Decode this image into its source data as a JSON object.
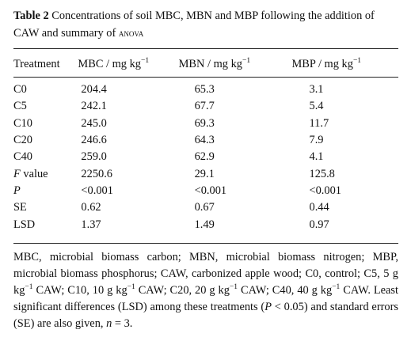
{
  "caption": {
    "label": "Table 2",
    "text_part1": "Concentrations of soil MBC, MBN and MBP following the addition of CAW and summary of",
    "text_sc": "anova"
  },
  "table": {
    "headers": [
      {
        "text": "Treatment",
        "sup": ""
      },
      {
        "text": "MBC / mg kg",
        "sup": "−1"
      },
      {
        "text": "MBN / mg kg",
        "sup": "−1"
      },
      {
        "text": "MBP / mg kg",
        "sup": "−1"
      }
    ],
    "rows": [
      {
        "label": "C0",
        "italic": false,
        "suffix": "",
        "mbc": "204.4",
        "mbn": "65.3",
        "mbp": "3.1"
      },
      {
        "label": "C5",
        "italic": false,
        "suffix": "",
        "mbc": "242.1",
        "mbn": "67.7",
        "mbp": "5.4"
      },
      {
        "label": "C10",
        "italic": false,
        "suffix": "",
        "mbc": "245.0",
        "mbn": "69.3",
        "mbp": "11.7"
      },
      {
        "label": "C20",
        "italic": false,
        "suffix": "",
        "mbc": "246.6",
        "mbn": "64.3",
        "mbp": "7.9"
      },
      {
        "label": "C40",
        "italic": false,
        "suffix": "",
        "mbc": "259.0",
        "mbn": "62.9",
        "mbp": "4.1"
      },
      {
        "label": "F",
        "italic": true,
        "suffix": " value",
        "mbc": "2250.6",
        "mbn": "29.1",
        "mbp": "125.8"
      },
      {
        "label": "P",
        "italic": true,
        "suffix": "",
        "mbc": "<0.001",
        "mbn": "<0.001",
        "mbp": "<0.001"
      },
      {
        "label": "SE",
        "italic": false,
        "suffix": "",
        "mbc": "0.62",
        "mbn": "0.67",
        "mbp": "0.44"
      },
      {
        "label": "LSD",
        "italic": false,
        "suffix": "",
        "mbc": "1.37",
        "mbn": "1.49",
        "mbp": "0.97"
      }
    ]
  },
  "footnote": {
    "t1": "MBC, microbial biomass carbon; MBN, microbial biomass nitrogen; MBP, microbial biomass phosphorus; CAW, carbonized apple wood; C0, control; C5, 5 g kg",
    "s1": "−1",
    "t2": " CAW; C10, 10 g kg",
    "s2": "−1",
    "t3": " CAW; C20, 20 g kg",
    "s3": "−1",
    "t4": " CAW; C40, 40 g kg",
    "s4": "−1",
    "t5": " CAW. Least significant differences (LSD) among these treatments (",
    "t5_ital": "P",
    "t6": " < 0.05) and standard errors (SE) are also given, ",
    "t6_ital": "n",
    "t7": " = 3."
  }
}
